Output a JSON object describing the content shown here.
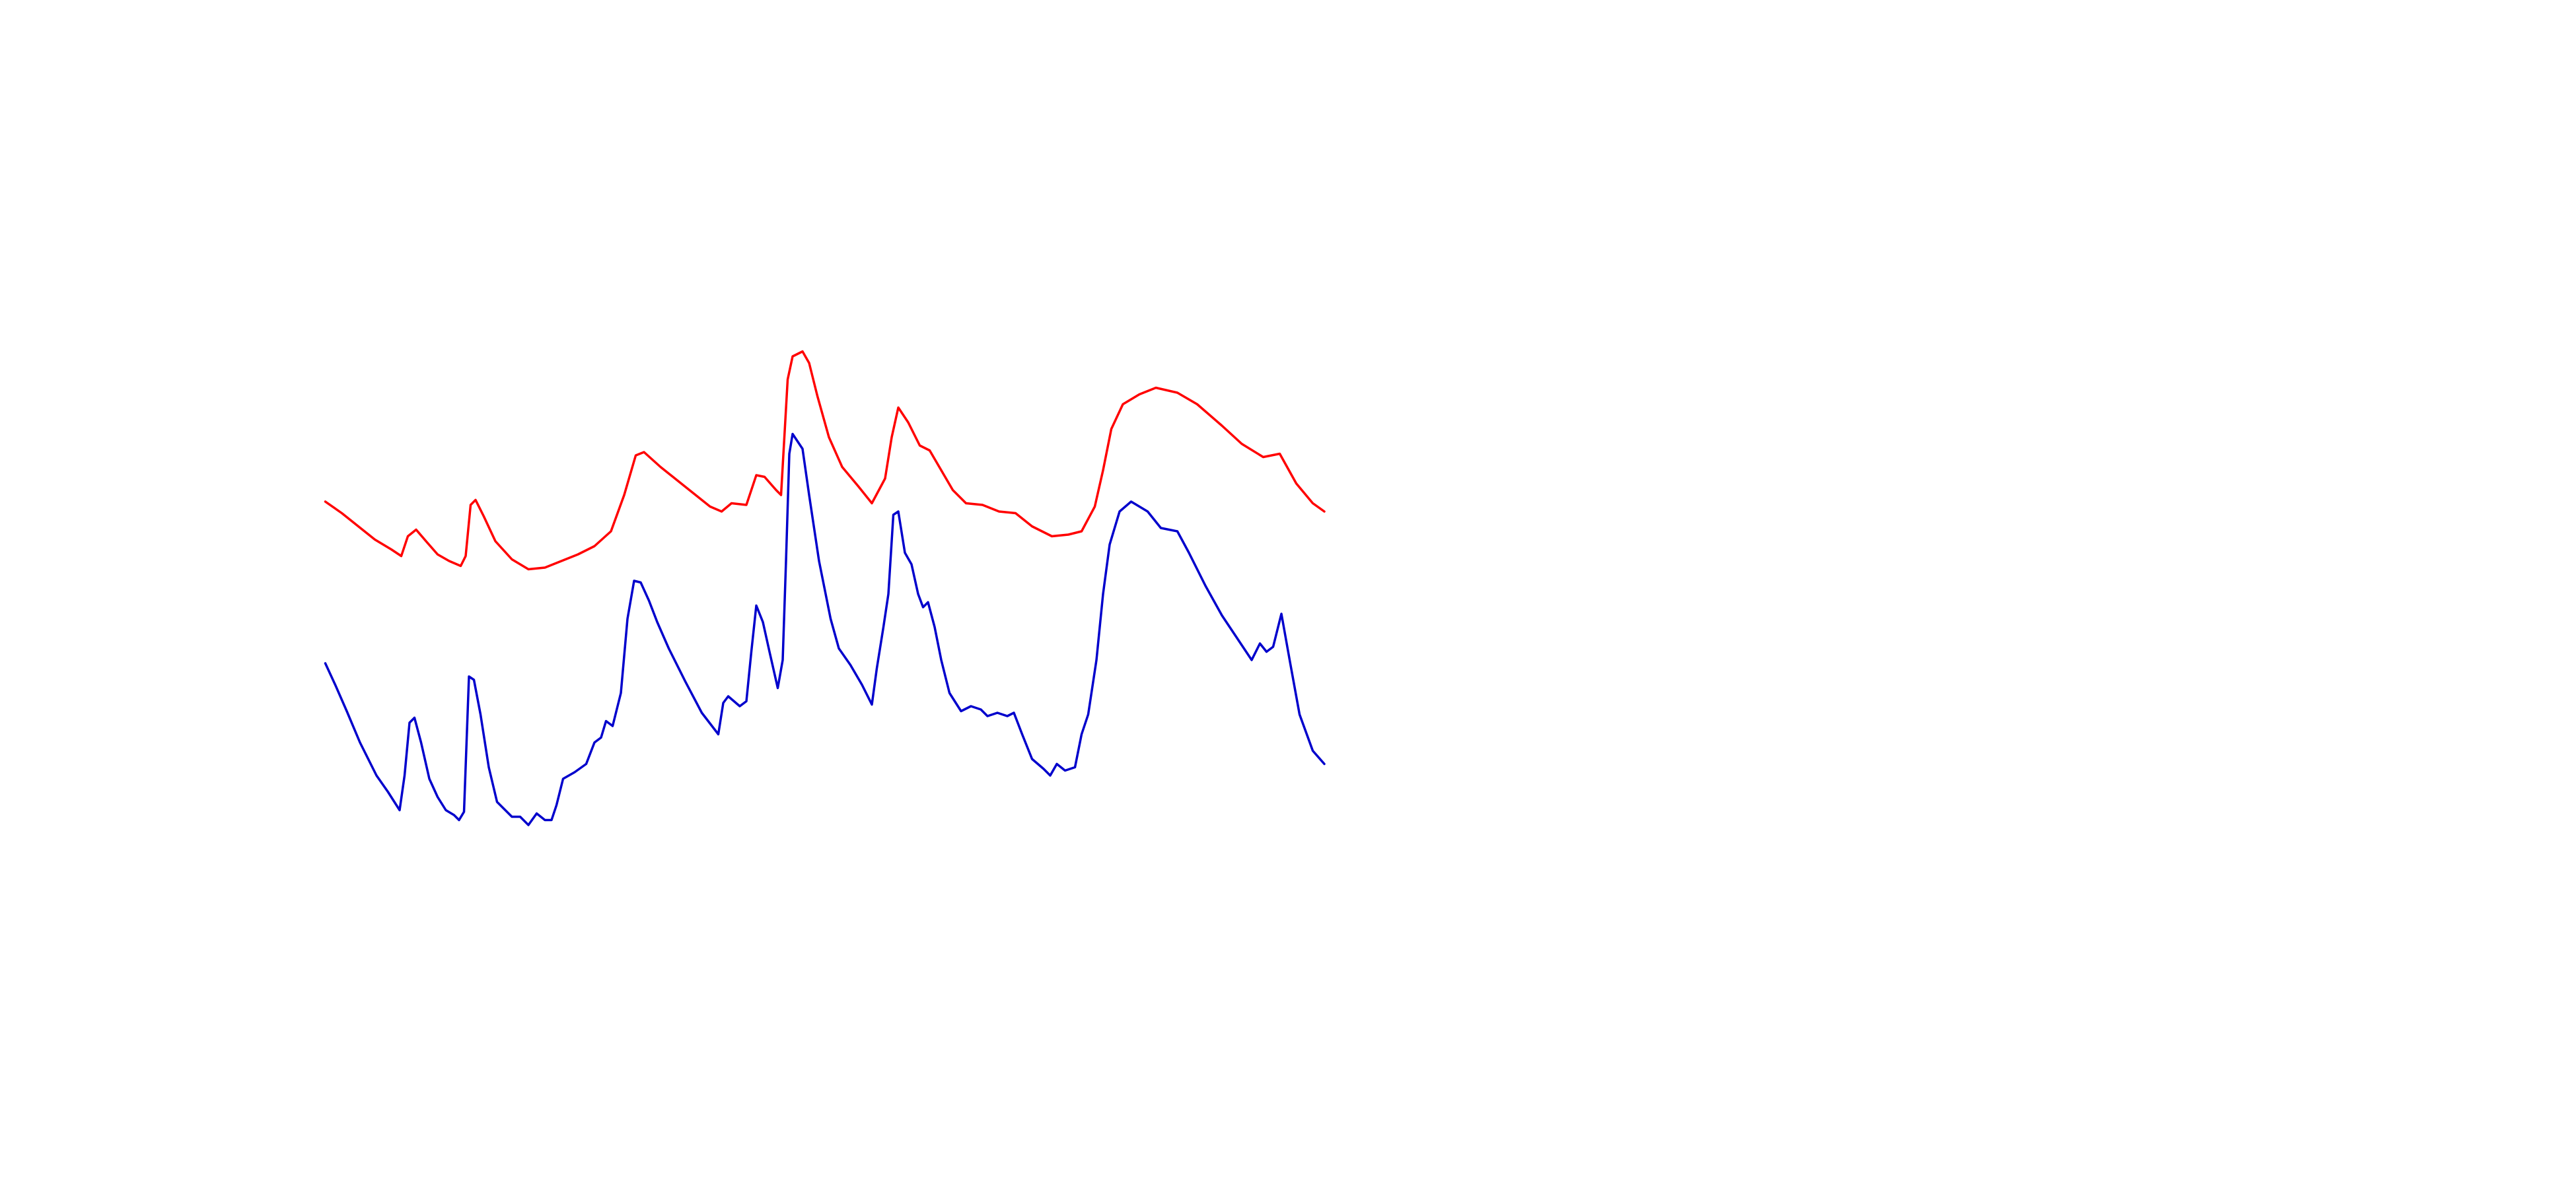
{
  "chart_data": {
    "type": "line",
    "xlim": [
      -197,
      1363
    ],
    "ylim": [
      0,
      720
    ],
    "series": [
      {
        "color": "#ff0000",
        "x": [
          0,
          10,
          20,
          30,
          40,
          46,
          50,
          55,
          61,
          68,
          75,
          82,
          85,
          88,
          91,
          96,
          103,
          113,
          123,
          133,
          143,
          153,
          163,
          173,
          181,
          188,
          193,
          203,
          213,
          223,
          233,
          240,
          246,
          255,
          261,
          266,
          273,
          276,
          280,
          283,
          289,
          293,
          298,
          305,
          313,
          323,
          331,
          339,
          343,
          347,
          353,
          360,
          366,
          373,
          380,
          388,
          398,
          408,
          418,
          428,
          440,
          450,
          458,
          466,
          471,
          476,
          483,
          493,
          503,
          516,
          528,
          543,
          555,
          568,
          578,
          588,
          598,
          605
        ],
        "values": [
          416,
          409,
          401,
          393,
          387,
          383,
          395,
          399,
          392,
          384,
          380,
          377,
          383,
          414,
          417,
          407,
          392,
          381,
          375,
          376,
          380,
          384,
          389,
          398,
          420,
          444,
          446,
          437,
          429,
          421,
          413,
          410,
          415,
          414,
          432,
          431,
          423,
          420,
          490,
          504,
          507,
          500,
          480,
          455,
          437,
          425,
          415,
          430,
          455,
          473,
          464,
          450,
          447,
          435,
          423,
          415,
          414,
          410,
          409,
          401,
          395,
          396,
          398,
          413,
          435,
          460,
          475,
          481,
          485,
          482,
          475,
          462,
          451,
          443,
          445,
          427,
          415,
          410
        ]
      },
      {
        "color": "#0000cc",
        "x": [
          0,
          6,
          13,
          21,
          31,
          38,
          45,
          48,
          51,
          54,
          58,
          63,
          68,
          73,
          78,
          81,
          84,
          87,
          90,
          94,
          99,
          104,
          113,
          118,
          123,
          128,
          133,
          137,
          140,
          144,
          151,
          158,
          163,
          167,
          170,
          174,
          179,
          183,
          187,
          191,
          196,
          201,
          208,
          218,
          228,
          238,
          241,
          244,
          251,
          255,
          258,
          261,
          265,
          269,
          274,
          277,
          279,
          281,
          283,
          289,
          293,
          299,
          306,
          311,
          318,
          325,
          331,
          334,
          338,
          341,
          344,
          347,
          351,
          355,
          359,
          362,
          365,
          369,
          373,
          378,
          385,
          391,
          397,
          401,
          407,
          413,
          417,
          422,
          428,
          435,
          439,
          443,
          448,
          454,
          458,
          462,
          467,
          471,
          475,
          481,
          488,
          498,
          506,
          516,
          523,
          533,
          543,
          553,
          561,
          566,
          570,
          574,
          579,
          584,
          590,
          598,
          605
        ],
        "values": [
          318,
          305,
          289,
          270,
          250,
          240,
          229,
          250,
          282,
          285,
          270,
          248,
          237,
          229,
          226,
          223,
          228,
          310,
          308,
          287,
          255,
          234,
          225,
          225,
          220,
          227,
          223,
          223,
          232,
          248,
          252,
          257,
          270,
          273,
          283,
          280,
          300,
          345,
          368,
          367,
          356,
          343,
          327,
          307,
          288,
          275,
          294,
          298,
          292,
          295,
          325,
          353,
          343,
          325,
          303,
          320,
          380,
          445,
          457,
          448,
          420,
          380,
          345,
          327,
          317,
          305,
          293,
          315,
          340,
          360,
          408,
          410,
          385,
          378,
          360,
          352,
          355,
          340,
          320,
          300,
          289,
          292,
          290,
          286,
          288,
          286,
          288,
          275,
          260,
          254,
          250,
          257,
          253,
          255,
          275,
          287,
          320,
          360,
          390,
          410,
          416,
          410,
          400,
          398,
          385,
          365,
          347,
          332,
          320,
          330,
          325,
          328,
          348,
          320,
          287,
          265,
          257
        ]
      }
    ]
  }
}
